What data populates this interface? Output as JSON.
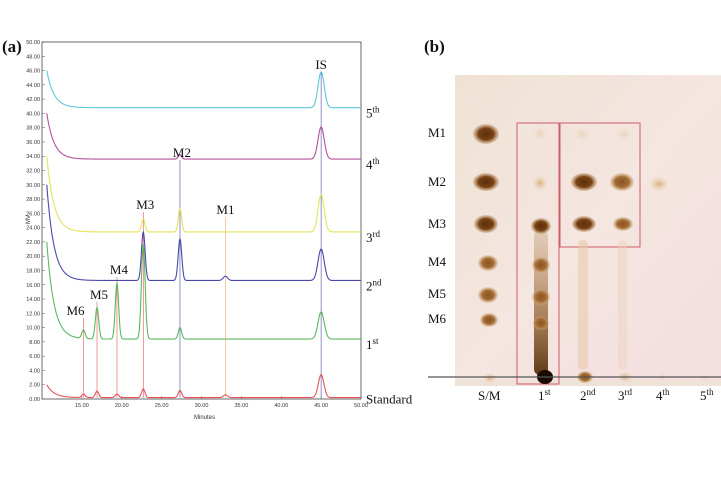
{
  "figure": {
    "panel_a_label": "(a)",
    "panel_b_label": "(b)"
  },
  "chart_data": {
    "type": "line",
    "xlabel": "Minutes",
    "ylabel": "MV",
    "xlim": [
      10.0,
      50.0
    ],
    "ylim": [
      0.0,
      50.0
    ],
    "x_ticks": [
      "15.00",
      "20.00",
      "25.00",
      "30.00",
      "35.00",
      "40.00",
      "45.00",
      "50.00"
    ],
    "y_ticks": [
      "0.00",
      "2.00",
      "4.00",
      "6.00",
      "8.00",
      "10.00",
      "12.00",
      "14.00",
      "16.00",
      "18.00",
      "20.00",
      "22.00",
      "24.00",
      "26.00",
      "28.00",
      "30.00",
      "32.00",
      "34.00",
      "36.00",
      "38.00",
      "40.00",
      "42.00",
      "44.00",
      "46.00",
      "48.00",
      "50.00"
    ],
    "series": [
      {
        "name": "5th",
        "color": "#5bc8dc",
        "baseline": 40.8,
        "start": 46,
        "peaks": [
          {
            "x": 45.0,
            "h": 5.0,
            "w": 0.55
          }
        ]
      },
      {
        "name": "4th",
        "color": "#b4509a",
        "baseline": 33.6,
        "start": 40,
        "peaks": [
          {
            "x": 27.3,
            "h": 0.6,
            "w": 0.3
          },
          {
            "x": 45.0,
            "h": 4.5,
            "w": 0.55
          }
        ]
      },
      {
        "name": "3rd",
        "color": "#e3e35a",
        "baseline": 23.4,
        "start": 34,
        "peaks": [
          {
            "x": 22.7,
            "h": 1.8,
            "w": 0.3
          },
          {
            "x": 27.3,
            "h": 3.2,
            "w": 0.3
          },
          {
            "x": 45.0,
            "h": 5.2,
            "w": 0.55
          }
        ]
      },
      {
        "name": "2nd",
        "color": "#4a48a8",
        "baseline": 16.6,
        "start": 30,
        "peaks": [
          {
            "x": 22.7,
            "h": 6.8,
            "w": 0.32
          },
          {
            "x": 27.3,
            "h": 5.8,
            "w": 0.32
          },
          {
            "x": 33.0,
            "h": 0.6,
            "w": 0.4
          },
          {
            "x": 45.0,
            "h": 4.4,
            "w": 0.55
          }
        ]
      },
      {
        "name": "1st",
        "color": "#5cb85c",
        "baseline": 8.4,
        "start": 22,
        "peaks": [
          {
            "x": 15.2,
            "h": 1.2,
            "w": 0.3
          },
          {
            "x": 16.9,
            "h": 4.4,
            "w": 0.3
          },
          {
            "x": 19.4,
            "h": 7.8,
            "w": 0.3
          },
          {
            "x": 22.7,
            "h": 13.2,
            "w": 0.33
          },
          {
            "x": 27.3,
            "h": 1.6,
            "w": 0.3
          },
          {
            "x": 45.0,
            "h": 3.8,
            "w": 0.55
          }
        ]
      },
      {
        "name": "Standard",
        "color": "#e8525a",
        "baseline": 0.2,
        "start": 2,
        "peaks": [
          {
            "x": 15.2,
            "h": 0.5,
            "w": 0.3
          },
          {
            "x": 16.9,
            "h": 0.9,
            "w": 0.3
          },
          {
            "x": 19.4,
            "h": 0.5,
            "w": 0.3
          },
          {
            "x": 22.7,
            "h": 1.2,
            "w": 0.3
          },
          {
            "x": 27.3,
            "h": 1.0,
            "w": 0.3
          },
          {
            "x": 33.0,
            "h": 0.4,
            "w": 0.35
          },
          {
            "x": 45.0,
            "h": 3.2,
            "w": 0.5
          }
        ]
      }
    ],
    "trace_labels": [
      {
        "base": "5",
        "sup": "th"
      },
      {
        "base": "4",
        "sup": "th"
      },
      {
        "base": "3",
        "sup": "rd"
      },
      {
        "base": "2",
        "sup": "nd"
      },
      {
        "base": "1",
        "sup": "st"
      },
      {
        "base": "Standard",
        "sup": ""
      }
    ],
    "peak_markers": [
      {
        "label": "M6",
        "x": 15.2
      },
      {
        "label": "M5",
        "x": 16.9
      },
      {
        "label": "M4",
        "x": 19.4
      },
      {
        "label": "M3",
        "x": 22.7
      },
      {
        "label": "M2",
        "x": 27.3
      },
      {
        "label": "M1",
        "x": 33.0
      },
      {
        "label": "IS",
        "x": 45.0
      }
    ]
  },
  "tlc": {
    "row_labels": [
      "M1",
      "M2",
      "M3",
      "M4",
      "M5",
      "M6"
    ],
    "lane_labels": [
      {
        "base": "S/M",
        "sup": ""
      },
      {
        "base": "1",
        "sup": "st"
      },
      {
        "base": "2",
        "sup": "nd"
      },
      {
        "base": "3",
        "sup": "rd"
      },
      {
        "base": "4",
        "sup": "th"
      },
      {
        "base": "5",
        "sup": "th"
      }
    ]
  }
}
